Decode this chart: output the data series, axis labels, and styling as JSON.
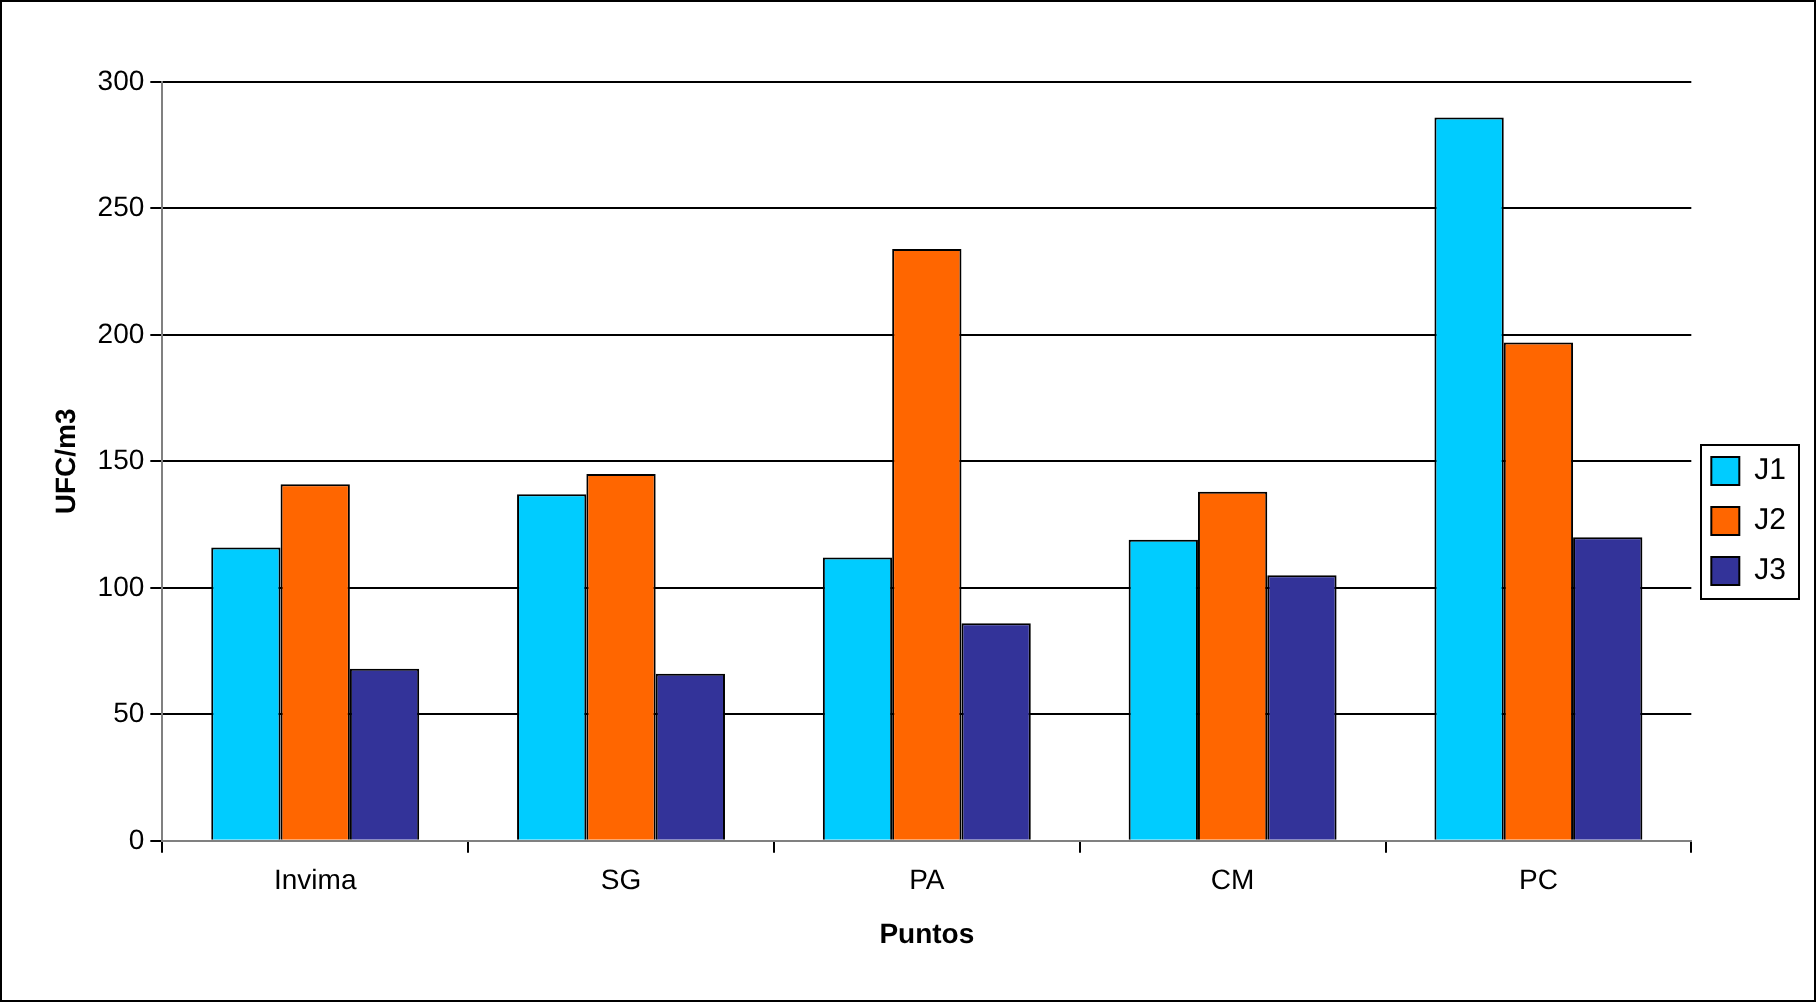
{
  "chart_data": {
    "type": "bar",
    "xlabel": "Puntos",
    "ylabel": "UFC/m3",
    "categories": [
      "Invima",
      "SG",
      "PA",
      "CM",
      "PC"
    ],
    "series": [
      {
        "name": "J1",
        "color": "#00ccff",
        "values": [
          116,
          137,
          112,
          119,
          286
        ]
      },
      {
        "name": "J2",
        "color": "#ff6600",
        "values": [
          141,
          145,
          234,
          138,
          197
        ]
      },
      {
        "name": "J3",
        "color": "#333399",
        "values": [
          68,
          66,
          86,
          105,
          120
        ]
      }
    ],
    "ylim": [
      0,
      300
    ],
    "yticks": [
      0,
      50,
      100,
      150,
      200,
      250,
      300
    ],
    "grid": "y",
    "legend": "right"
  }
}
